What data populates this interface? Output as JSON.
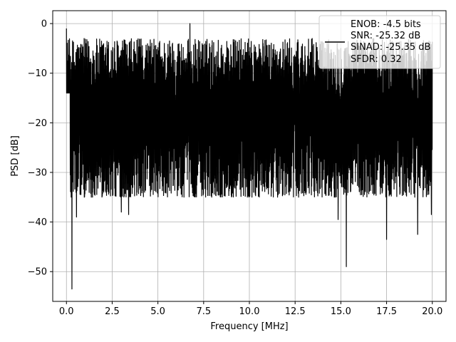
{
  "chart_data": {
    "type": "line",
    "xlabel": "Frequency [MHz]",
    "ylabel": "PSD [dB]",
    "xlim": [
      -0.75,
      20.75
    ],
    "ylim": [
      -56,
      2.6
    ],
    "xticks": [
      0.0,
      2.5,
      5.0,
      7.5,
      10.0,
      12.5,
      15.0,
      17.5,
      20.0
    ],
    "xtick_labels": [
      "0.0",
      "2.5",
      "5.0",
      "7.5",
      "10.0",
      "12.5",
      "15.0",
      "17.5",
      "20.0"
    ],
    "yticks": [
      0,
      -10,
      -20,
      -30,
      -40,
      -50
    ],
    "ytick_labels": [
      "0",
      "−10",
      "−20",
      "−30",
      "−40",
      "−50"
    ],
    "grid": true,
    "legend_position": "top-right",
    "legend_lines": [
      "ENOB: -4.5 bits",
      "SNR: -25.32 dB",
      "SINAD: -25.35 dB",
      "SFDR: 0.32"
    ],
    "series": [
      {
        "color": "#000000",
        "x_range": [
          0,
          20
        ],
        "noise_upper_range": [
          -18,
          -3
        ],
        "noise_lower_range": [
          -35,
          -20
        ],
        "peaks": [
          {
            "x": 0.0,
            "y": -1
          },
          {
            "x": 6.75,
            "y": 0
          },
          {
            "x": 0.3,
            "y": -53.5
          },
          {
            "x": 0.55,
            "y": -39
          },
          {
            "x": 3.0,
            "y": -38
          },
          {
            "x": 3.4,
            "y": -38.5
          },
          {
            "x": 14.85,
            "y": -39.5
          },
          {
            "x": 15.3,
            "y": -49
          },
          {
            "x": 17.5,
            "y": -43.5
          },
          {
            "x": 19.2,
            "y": -42.5
          },
          {
            "x": 19.95,
            "y": -38.5
          }
        ]
      }
    ]
  }
}
